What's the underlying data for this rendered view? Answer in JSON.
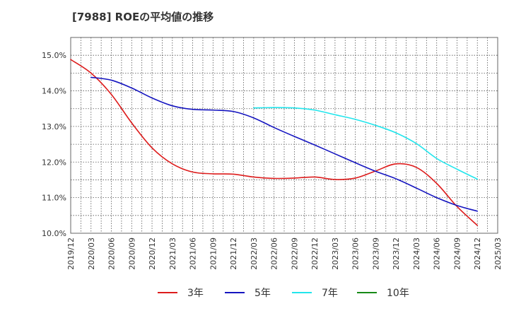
{
  "chart_data": {
    "type": "line",
    "title": "[7988]  ROEの平均値の推移",
    "xlabel": "",
    "ylabel": "",
    "x_ticks": [
      "2019/12",
      "2020/03",
      "2020/06",
      "2020/09",
      "2020/12",
      "2021/03",
      "2021/06",
      "2021/09",
      "2021/12",
      "2022/03",
      "2022/06",
      "2022/09",
      "2022/12",
      "2023/03",
      "2023/06",
      "2023/09",
      "2023/12",
      "2024/03",
      "2024/06",
      "2024/09",
      "2024/12",
      "2025/03"
    ],
    "y_ticks": [
      "10.0%",
      "11.0%",
      "12.0%",
      "13.0%",
      "14.0%",
      "15.0%"
    ],
    "ylim": [
      10.0,
      15.5
    ],
    "grid": true,
    "legend_position": "bottom",
    "series": [
      {
        "name": "3年",
        "color": "#dd1c1c",
        "points": [
          [
            0,
            14.88
          ],
          [
            1,
            14.5
          ],
          [
            2,
            13.9
          ],
          [
            3,
            13.1
          ],
          [
            4,
            12.4
          ],
          [
            5,
            11.95
          ],
          [
            6,
            11.72
          ],
          [
            7,
            11.67
          ],
          [
            8,
            11.66
          ],
          [
            9,
            11.58
          ],
          [
            10,
            11.54
          ],
          [
            11,
            11.55
          ],
          [
            12,
            11.58
          ],
          [
            13,
            11.51
          ],
          [
            14,
            11.55
          ],
          [
            15,
            11.75
          ],
          [
            16,
            11.95
          ],
          [
            17,
            11.85
          ],
          [
            18,
            11.4
          ],
          [
            19,
            10.75
          ],
          [
            20,
            10.22
          ]
        ]
      },
      {
        "name": "5年",
        "color": "#1515c0",
        "points": [
          [
            1,
            14.38
          ],
          [
            2,
            14.3
          ],
          [
            3,
            14.08
          ],
          [
            4,
            13.8
          ],
          [
            5,
            13.58
          ],
          [
            6,
            13.48
          ],
          [
            7,
            13.46
          ],
          [
            8,
            13.42
          ],
          [
            9,
            13.24
          ],
          [
            10,
            12.97
          ],
          [
            11,
            12.72
          ],
          [
            12,
            12.48
          ],
          [
            13,
            12.23
          ],
          [
            14,
            11.98
          ],
          [
            15,
            11.74
          ],
          [
            16,
            11.53
          ],
          [
            17,
            11.27
          ],
          [
            18,
            11.0
          ],
          [
            19,
            10.78
          ],
          [
            20,
            10.62
          ]
        ]
      },
      {
        "name": "7年",
        "color": "#22e5ec",
        "points": [
          [
            9,
            13.52
          ],
          [
            10,
            13.53
          ],
          [
            11,
            13.52
          ],
          [
            12,
            13.46
          ],
          [
            13,
            13.33
          ],
          [
            14,
            13.2
          ],
          [
            15,
            13.03
          ],
          [
            16,
            12.82
          ],
          [
            17,
            12.52
          ],
          [
            18,
            12.1
          ],
          [
            19,
            11.8
          ],
          [
            20,
            11.52
          ]
        ]
      },
      {
        "name": "10年",
        "color": "#178a17",
        "points": []
      }
    ]
  }
}
